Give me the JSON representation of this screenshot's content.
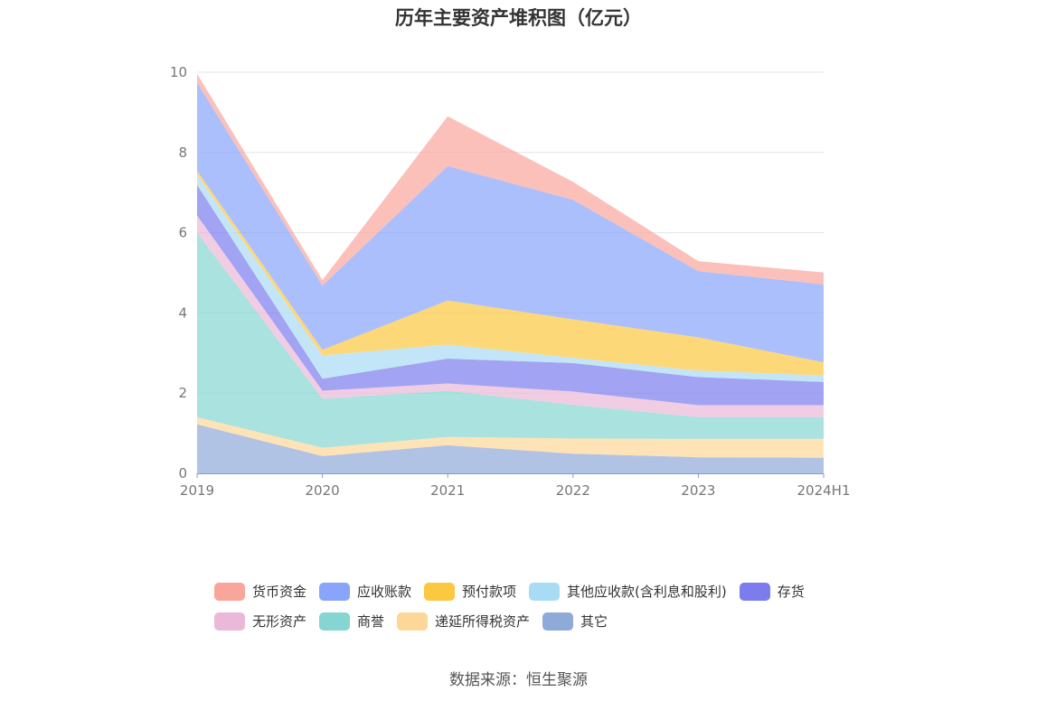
{
  "title": "历年主要资产堆积图（亿元）",
  "source": "数据来源：恒生聚源",
  "chart_data": {
    "type": "area",
    "stacked": true,
    "title": "历年主要资产堆积图（亿元）",
    "categories": [
      "2019",
      "2020",
      "2021",
      "2022",
      "2023",
      "2024H1"
    ],
    "ylim": [
      0,
      10
    ],
    "yticks": [
      "0",
      "2",
      "4",
      "6",
      "8",
      "10"
    ],
    "grid": true,
    "legend_position": "bottom",
    "series": [
      {
        "name": "其它",
        "color": "#8eaad8",
        "values": [
          1.22,
          0.43,
          0.7,
          0.49,
          0.4,
          0.39
        ]
      },
      {
        "name": "递延所得税资产",
        "color": "#fdd797",
        "values": [
          0.18,
          0.21,
          0.21,
          0.38,
          0.46,
          0.47
        ]
      },
      {
        "name": "商誉",
        "color": "#85d5d2",
        "values": [
          4.6,
          1.22,
          1.15,
          0.84,
          0.54,
          0.54
        ]
      },
      {
        "name": "无形资产",
        "color": "#ebb8d9",
        "values": [
          0.43,
          0.2,
          0.18,
          0.33,
          0.3,
          0.3
        ]
      },
      {
        "name": "存货",
        "color": "#7c7cee",
        "values": [
          0.76,
          0.3,
          0.62,
          0.71,
          0.7,
          0.58
        ]
      },
      {
        "name": "其他应收款(含利息和股利)",
        "color": "#a8dcf5",
        "values": [
          0.25,
          0.58,
          0.35,
          0.13,
          0.16,
          0.16
        ]
      },
      {
        "name": "预付款项",
        "color": "#fcc840",
        "values": [
          0.1,
          0.14,
          1.1,
          0.96,
          0.83,
          0.33
        ]
      },
      {
        "name": "应收账款",
        "color": "#88a4fb",
        "values": [
          2.2,
          1.6,
          3.35,
          2.98,
          1.65,
          1.94
        ]
      },
      {
        "name": "货币资金",
        "color": "#f9a59b",
        "values": [
          0.22,
          0.14,
          1.24,
          0.45,
          0.25,
          0.3
        ]
      }
    ]
  },
  "legend_rows": [
    [
      "货币资金",
      "应收账款",
      "预付款项",
      "其他应收款(含利息和股利)",
      "存货"
    ],
    [
      "无形资产",
      "商誉",
      "递延所得税资产",
      "其它"
    ]
  ]
}
